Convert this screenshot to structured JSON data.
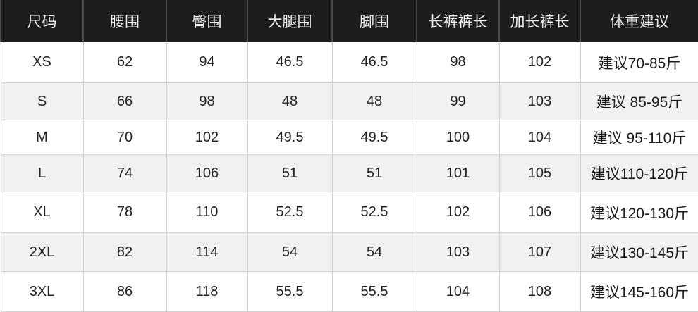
{
  "headers": [
    "尺码",
    "腰围",
    "臀围",
    "大腿围",
    "脚围",
    "长裤裤长",
    "加长裤长",
    "体重建议"
  ],
  "rows": [
    [
      "XS",
      "62",
      "94",
      "46.5",
      "46.5",
      "98",
      "102",
      "建议70-85斤"
    ],
    [
      "S",
      "66",
      "98",
      "48",
      "48",
      "99",
      "103",
      "建议 85-95斤"
    ],
    [
      "M",
      "70",
      "102",
      "49.5",
      "49.5",
      "100",
      "104",
      "建议 95-110斤"
    ],
    [
      "L",
      "74",
      "106",
      "51",
      "51",
      "101",
      "105",
      "建议110-120斤"
    ],
    [
      "XL",
      "78",
      "110",
      "52.5",
      "52.5",
      "102",
      "106",
      "建议120-130斤"
    ],
    [
      "2XL",
      "82",
      "114",
      "54",
      "54",
      "103",
      "107",
      "建议130-145斤"
    ],
    [
      "3XL",
      "86",
      "118",
      "55.5",
      "55.5",
      "104",
      "108",
      "建议145-160斤"
    ]
  ]
}
